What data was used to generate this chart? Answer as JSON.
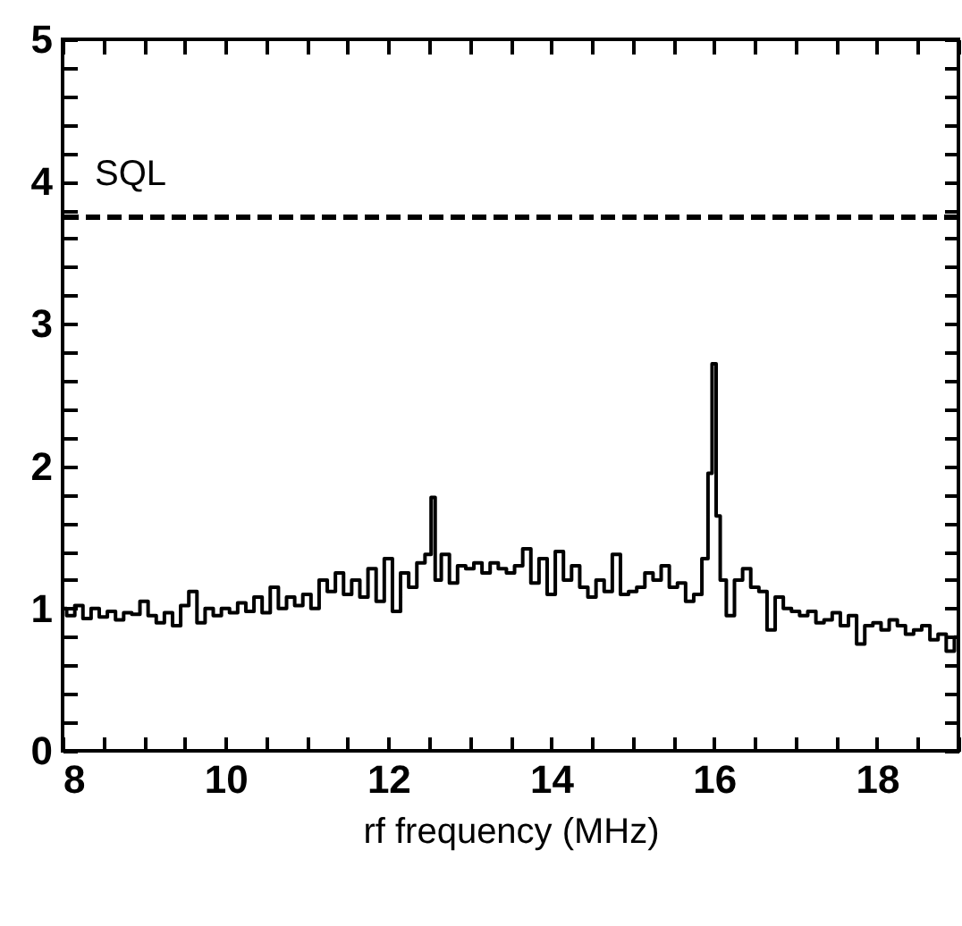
{
  "chart_data": {
    "type": "step",
    "xlabel": "rf frequency (MHz)",
    "xlim": [
      8,
      19
    ],
    "ylim": [
      0,
      5
    ],
    "xticks": [
      8,
      {
        "value": 8.5,
        "label": null
      },
      {
        "value": 9,
        "label": null
      },
      {
        "value": 9.5,
        "label": null
      },
      10,
      {
        "value": 10.5,
        "label": null
      },
      {
        "value": 11,
        "label": null
      },
      {
        "value": 11.5,
        "label": null
      },
      12,
      {
        "value": 12.5,
        "label": null
      },
      {
        "value": 13,
        "label": null
      },
      {
        "value": 13.5,
        "label": null
      },
      14,
      {
        "value": 14.5,
        "label": null
      },
      {
        "value": 15,
        "label": null
      },
      {
        "value": 15.5,
        "label": null
      },
      16,
      {
        "value": 16.5,
        "label": null
      },
      {
        "value": 17,
        "label": null
      },
      {
        "value": 17.5,
        "label": null
      },
      18,
      {
        "value": 18.5,
        "label": null
      },
      {
        "value": 19,
        "label": null
      }
    ],
    "yticks": [
      0,
      {
        "value": 0.2,
        "label": null
      },
      {
        "value": 0.4,
        "label": null
      },
      {
        "value": 0.6,
        "label": null
      },
      {
        "value": 0.8,
        "label": null
      },
      1,
      {
        "value": 1.2,
        "label": null
      },
      {
        "value": 1.4,
        "label": null
      },
      {
        "value": 1.6,
        "label": null
      },
      {
        "value": 1.8,
        "label": null
      },
      2,
      {
        "value": 2.2,
        "label": null
      },
      {
        "value": 2.4,
        "label": null
      },
      {
        "value": 2.6,
        "label": null
      },
      {
        "value": 2.8,
        "label": null
      },
      3,
      {
        "value": 3.2,
        "label": null
      },
      {
        "value": 3.4,
        "label": null
      },
      {
        "value": 3.6,
        "label": null
      },
      {
        "value": 3.8,
        "label": null
      },
      4,
      {
        "value": 4.2,
        "label": null
      },
      {
        "value": 4.4,
        "label": null
      },
      {
        "value": 4.6,
        "label": null
      },
      {
        "value": 4.8,
        "label": null
      },
      5
    ],
    "x": [
      8.0,
      8.1,
      8.2,
      8.3,
      8.4,
      8.5,
      8.6,
      8.7,
      8.8,
      8.9,
      9.0,
      9.1,
      9.2,
      9.3,
      9.4,
      9.5,
      9.6,
      9.7,
      9.8,
      9.9,
      10.0,
      10.1,
      10.2,
      10.3,
      10.4,
      10.5,
      10.6,
      10.7,
      10.8,
      10.9,
      11.0,
      11.1,
      11.2,
      11.3,
      11.4,
      11.5,
      11.6,
      11.7,
      11.8,
      11.9,
      12.0,
      12.1,
      12.2,
      12.3,
      12.4,
      12.5,
      12.55,
      12.6,
      12.7,
      12.8,
      12.9,
      13.0,
      13.1,
      13.2,
      13.3,
      13.4,
      13.5,
      13.6,
      13.7,
      13.8,
      13.9,
      14.0,
      14.1,
      14.2,
      14.3,
      14.4,
      14.5,
      14.6,
      14.7,
      14.8,
      14.9,
      15.0,
      15.1,
      15.2,
      15.3,
      15.4,
      15.5,
      15.6,
      15.7,
      15.8,
      15.9,
      15.95,
      16.0,
      16.05,
      16.1,
      16.2,
      16.3,
      16.4,
      16.5,
      16.6,
      16.7,
      16.8,
      16.9,
      17.0,
      17.1,
      17.2,
      17.3,
      17.4,
      17.5,
      17.6,
      17.7,
      17.8,
      17.9,
      18.0,
      18.1,
      18.2,
      18.3,
      18.4,
      18.5,
      18.6,
      18.7,
      18.8,
      18.9,
      19.0
    ],
    "series": [
      {
        "color": "#000000",
        "values": [
          1.0,
          0.95,
          1.02,
          0.93,
          1.0,
          0.94,
          0.98,
          0.92,
          0.97,
          0.96,
          1.05,
          0.95,
          0.9,
          0.97,
          0.88,
          1.02,
          1.12,
          0.9,
          1.0,
          0.95,
          1.0,
          0.97,
          1.04,
          0.98,
          1.08,
          0.97,
          1.15,
          1.0,
          1.08,
          1.02,
          1.1,
          1.0,
          1.2,
          1.12,
          1.25,
          1.1,
          1.2,
          1.08,
          1.28,
          1.05,
          1.35,
          0.98,
          1.25,
          1.15,
          1.32,
          1.38,
          1.78,
          1.2,
          1.38,
          1.18,
          1.3,
          1.28,
          1.32,
          1.25,
          1.32,
          1.28,
          1.25,
          1.3,
          1.42,
          1.18,
          1.35,
          1.1,
          1.4,
          1.2,
          1.3,
          1.15,
          1.08,
          1.2,
          1.12,
          1.38,
          1.1,
          1.12,
          1.15,
          1.25,
          1.2,
          1.3,
          1.15,
          1.18,
          1.05,
          1.1,
          1.35,
          1.95,
          2.72,
          1.65,
          1.2,
          0.95,
          1.2,
          1.28,
          1.15,
          1.12,
          0.85,
          1.08,
          1.0,
          0.98,
          0.95,
          0.98,
          0.9,
          0.92,
          0.97,
          0.88,
          0.95,
          0.75,
          0.88,
          0.9,
          0.85,
          0.92,
          0.88,
          0.82,
          0.85,
          0.88,
          0.78,
          0.82,
          0.7,
          0.8
        ]
      }
    ],
    "ref_lines": [
      {
        "axis": "y",
        "value": 3.75,
        "label": "SQL",
        "color": "#000000",
        "line_style": "dashed"
      }
    ]
  }
}
